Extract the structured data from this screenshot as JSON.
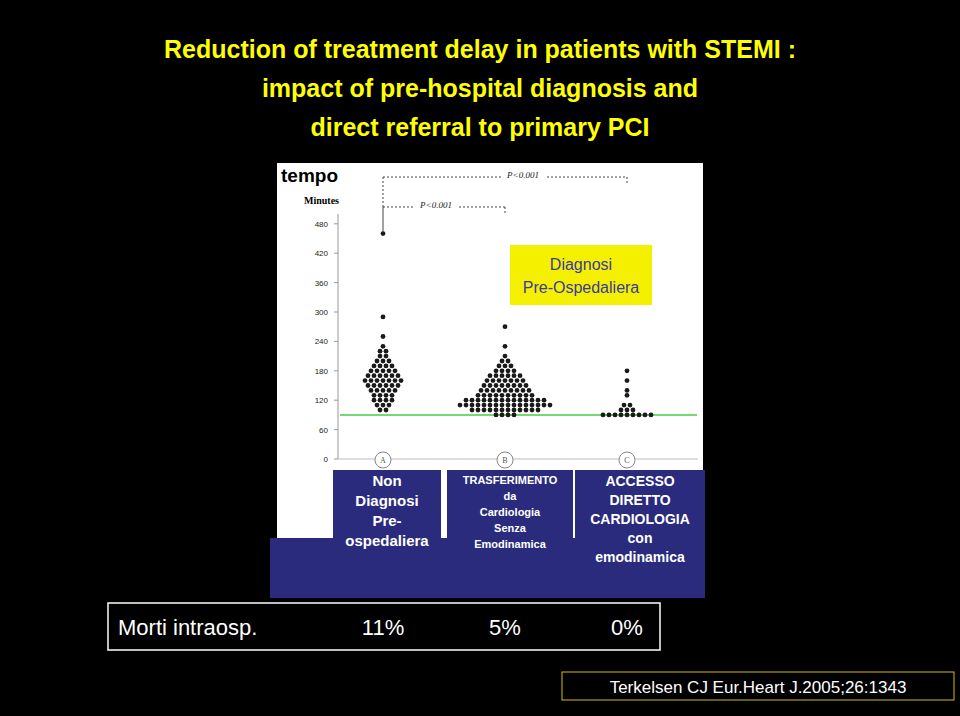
{
  "chart_data": {
    "type": "strip",
    "title": [
      "Reduction of treatment delay in patients with STEMI :",
      "impact of pre-hospital diagnosis and",
      "direct referral to primary  PCI"
    ],
    "y_axis_title": "tempo",
    "y_label": "Minutes",
    "ylim": [
      0,
      500
    ],
    "yticks": [
      0,
      60,
      120,
      180,
      240,
      300,
      360,
      420,
      480
    ],
    "categories": [
      "A",
      "B",
      "C"
    ],
    "color": "#1a1a1a",
    "groups": [
      {
        "name_lines": [
          "Non",
          "Diagnosi",
          "Pre-",
          "ospedaliera"
        ],
        "values": [
          460,
          290,
          250,
          230,
          220,
          220,
          210,
          210,
          200,
          200,
          200,
          190,
          190,
          190,
          190,
          180,
          180,
          180,
          180,
          180,
          170,
          170,
          170,
          170,
          170,
          170,
          160,
          160,
          160,
          160,
          160,
          160,
          160,
          150,
          150,
          150,
          150,
          150,
          150,
          140,
          140,
          140,
          140,
          140,
          130,
          130,
          130,
          130,
          120,
          120,
          120,
          120,
          110,
          110,
          110,
          100,
          100
        ]
      },
      {
        "name_lines": [
          "TRASFERIMENTO",
          "da",
          "Cardiologia",
          "Senza",
          "Emodinamica"
        ],
        "values": [
          270,
          230,
          210,
          200,
          200,
          190,
          190,
          190,
          180,
          180,
          180,
          180,
          170,
          170,
          170,
          170,
          170,
          170,
          160,
          160,
          160,
          160,
          160,
          160,
          160,
          150,
          150,
          150,
          150,
          150,
          150,
          150,
          150,
          140,
          140,
          140,
          140,
          140,
          140,
          140,
          140,
          140,
          130,
          130,
          130,
          130,
          130,
          130,
          130,
          130,
          130,
          130,
          120,
          120,
          120,
          120,
          120,
          120,
          120,
          120,
          120,
          120,
          120,
          120,
          120,
          120,
          110,
          110,
          110,
          110,
          110,
          110,
          110,
          110,
          110,
          110,
          110,
          110,
          110,
          110,
          110,
          110,
          100,
          100,
          100,
          100,
          100,
          100,
          100,
          100,
          100,
          100,
          100,
          100,
          90,
          90,
          90,
          90
        ]
      },
      {
        "name_lines": [
          "ACCESSO",
          "DIRETTO",
          "CARDIOLOGIA",
          "con",
          "emodinamica"
        ],
        "values": [
          180,
          160,
          140,
          130,
          110,
          110,
          100,
          100,
          100,
          90,
          90,
          90,
          90,
          90,
          90,
          90,
          90,
          90
        ]
      }
    ],
    "reference_line": {
      "value": 90,
      "color": "#44cc44"
    },
    "annotations": [
      {
        "text": "P<0.001",
        "from": 0,
        "to": 2
      },
      {
        "text": "P<0.001",
        "from": 0,
        "to": 1
      }
    ],
    "callout": [
      "Diagnosi",
      "Pre-Ospedaliera"
    ]
  },
  "mortality": {
    "label": "Morti intraosp.",
    "cells": [
      "11%",
      "5%",
      "0%"
    ]
  },
  "citation": "Terkelsen CJ Eur.Heart J.2005;26:1343"
}
